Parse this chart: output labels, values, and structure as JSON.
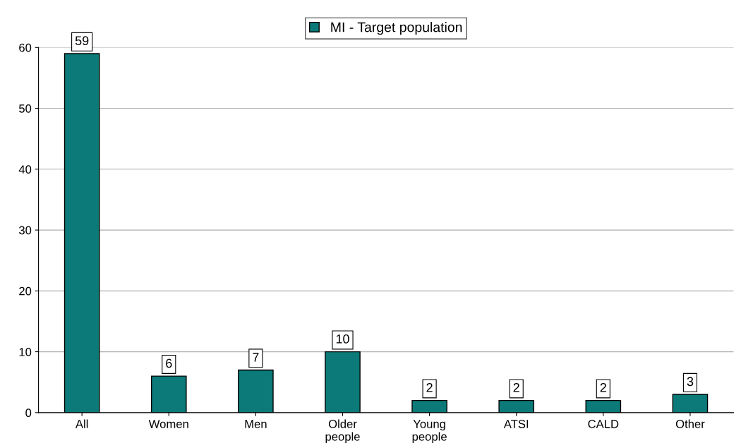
{
  "chart_data": {
    "type": "bar",
    "categories": [
      "All",
      "Women",
      "Men",
      "Older\npeople",
      "Young\npeople",
      "ATSI",
      "CALD",
      "Other"
    ],
    "series": [
      {
        "name": "MI - Target population",
        "color": "#0b7a78",
        "values": [
          59,
          6,
          7,
          10,
          2,
          2,
          2,
          3
        ]
      }
    ],
    "ylim": [
      0,
      60
    ],
    "yticks": [
      0,
      10,
      20,
      30,
      40,
      50,
      60
    ],
    "grid": "y",
    "legend": "top",
    "data_labels": true
  }
}
